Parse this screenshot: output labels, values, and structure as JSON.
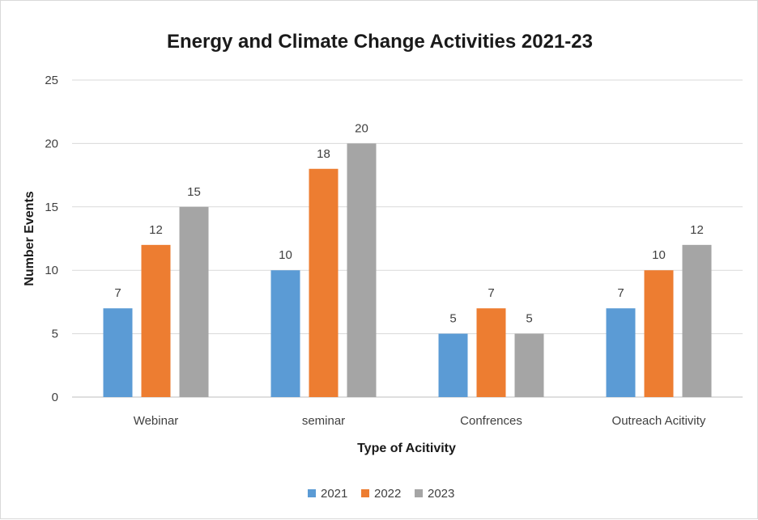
{
  "chart_data": {
    "type": "bar",
    "title": "Energy and Climate Change Activities 2021-23",
    "xlabel": "Type of Acitivity",
    "ylabel": "Number Events",
    "categories": [
      "Webinar",
      "seminar",
      "Confrences",
      "Outreach Acitivity"
    ],
    "series": [
      {
        "name": "2021",
        "color": "#5b9bd5",
        "values": [
          7,
          10,
          5,
          7
        ]
      },
      {
        "name": "2022",
        "color": "#ed7d31",
        "values": [
          12,
          18,
          7,
          10
        ]
      },
      {
        "name": "2023",
        "color": "#a5a5a5",
        "values": [
          15,
          20,
          5,
          12
        ]
      }
    ],
    "ylim": [
      0,
      25
    ],
    "yticks": [
      0,
      5,
      10,
      15,
      20,
      25
    ],
    "grid": true,
    "legend": "bottom-center",
    "data_labels": true
  }
}
